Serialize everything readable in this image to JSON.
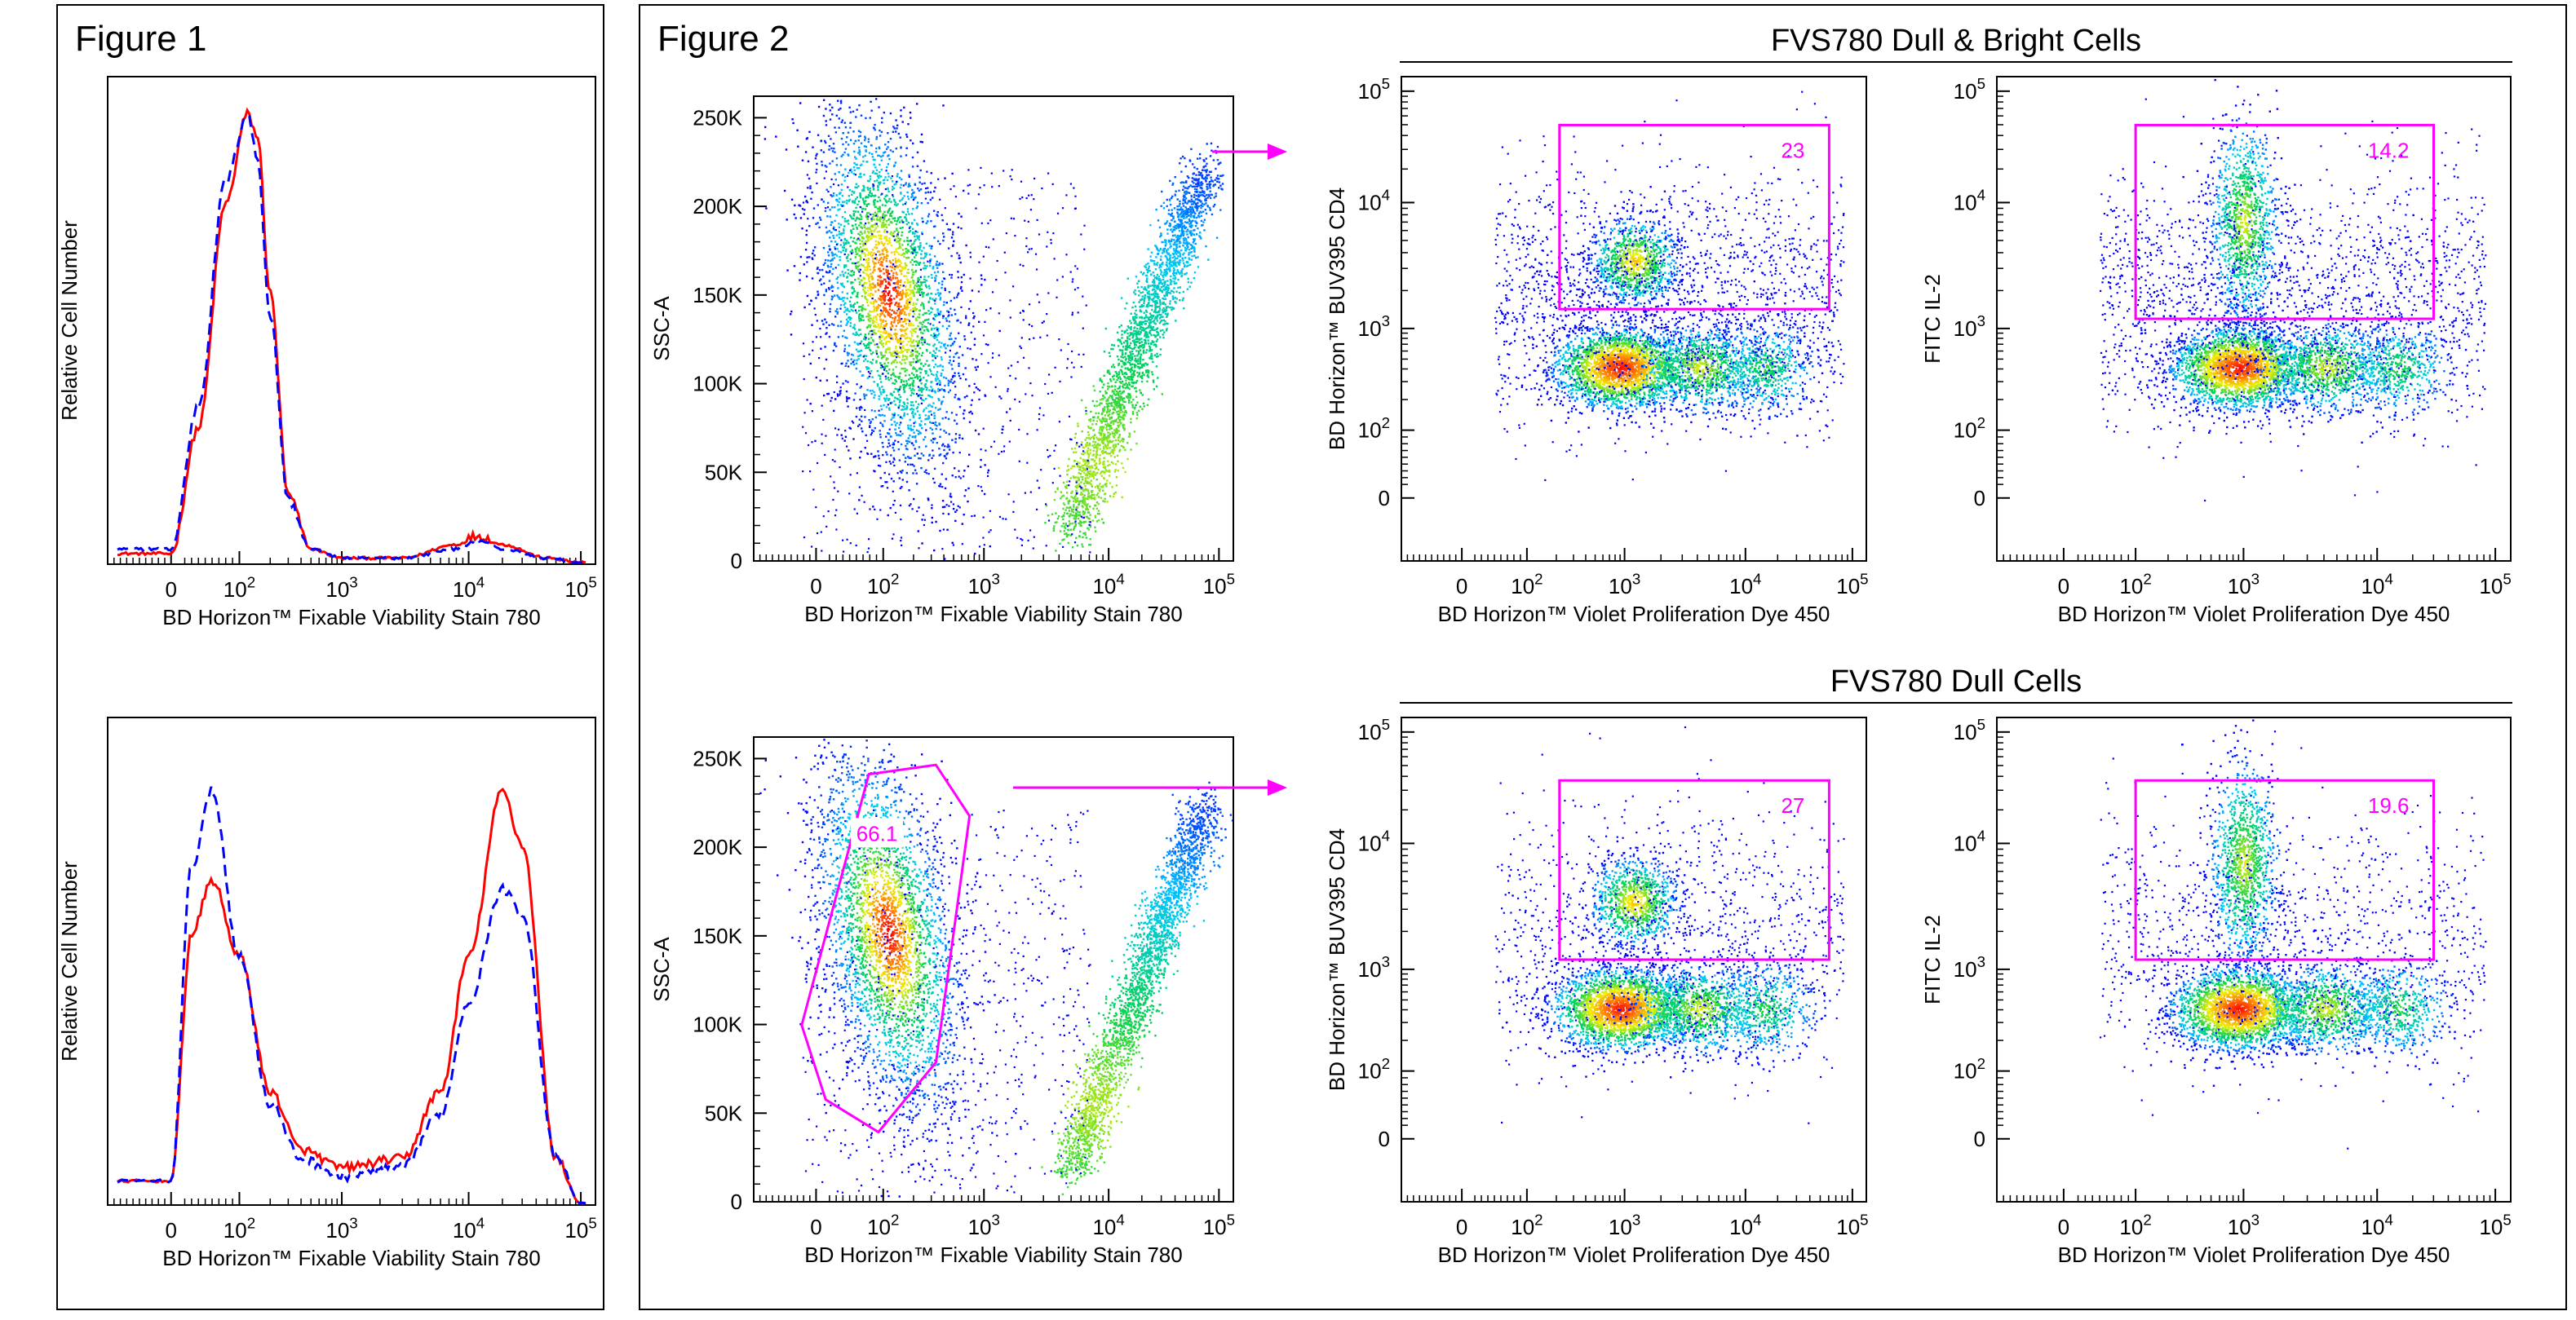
{
  "colors": {
    "gate": "#ff00ff",
    "solid_line": "#ff0000",
    "dashed_line": "#0000ff",
    "density_low": "#0000ff",
    "density_high": "#ff0000"
  },
  "figure1": {
    "title": "Figure 1",
    "panels": [
      {
        "ylabel": "Relative Cell Number",
        "xlabel": "BD Horizon™ Fixable Viability Stain 780",
        "x_ticks": [
          "0",
          "10^2",
          "10^3",
          "10^4",
          "10^5"
        ]
      },
      {
        "ylabel": "Relative Cell Number",
        "xlabel": "BD Horizon™ Fixable Viability Stain 780",
        "x_ticks": [
          "0",
          "10^2",
          "10^3",
          "10^4",
          "10^5"
        ]
      }
    ]
  },
  "figure2": {
    "title": "Figure 2",
    "section_titles": [
      "FVS780 Dull & Bright Cells",
      "FVS780 Dull Cells"
    ],
    "scatter_panels": [
      {
        "ylabel": "SSC-A",
        "xlabel": "BD Horizon™ Fixable Viability Stain 780",
        "y_ticks": [
          "0",
          "50K",
          "100K",
          "150K",
          "200K",
          "250K"
        ],
        "x_ticks": [
          "0",
          "10^2",
          "10^3",
          "10^4",
          "10^5"
        ]
      },
      {
        "ylabel": "SSC-A",
        "xlabel": "BD Horizon™ Fixable Viability Stain 780",
        "y_ticks": [
          "0",
          "50K",
          "100K",
          "150K",
          "200K",
          "250K"
        ],
        "x_ticks": [
          "0",
          "10^2",
          "10^3",
          "10^4",
          "10^5"
        ],
        "gate_value": "66.1"
      }
    ],
    "dot_panels": [
      {
        "ylabel": "BD Horizon™ BUV395 CD4",
        "xlabel": "BD Horizon™ Violet Proliferation Dye 450",
        "gate_value": "23"
      },
      {
        "ylabel": "FITC IL-2",
        "xlabel": "BD Horizon™ Violet Proliferation Dye 450",
        "gate_value": "14.2"
      },
      {
        "ylabel": "BD Horizon™ BUV395 CD4",
        "xlabel": "BD Horizon™ Violet Proliferation Dye 450",
        "gate_value": "27"
      },
      {
        "ylabel": "FITC IL-2",
        "xlabel": "BD Horizon™ Violet Proliferation Dye 450",
        "gate_value": "19.6"
      }
    ],
    "dot_y_ticks": [
      "0",
      "10^2",
      "10^3",
      "10^4",
      "10^5"
    ],
    "dot_x_ticks": [
      "0",
      "10^2",
      "10^3",
      "10^4",
      "10^5"
    ]
  },
  "chart_data": [
    {
      "type": "line",
      "panel": "figure1-top",
      "xlabel": "BD Horizon™ Fixable Viability Stain 780",
      "ylabel": "Relative Cell Number",
      "x": [
        0,
        40,
        80,
        120,
        150,
        200,
        300,
        500,
        1000,
        3000,
        8000,
        12000,
        20000,
        50000,
        100000
      ],
      "series": [
        {
          "values": [
            0.02,
            0.3,
            0.8,
            1.0,
            0.95,
            0.6,
            0.15,
            0.03,
            0.01,
            0.01,
            0.04,
            0.06,
            0.04,
            0.01,
            0.0
          ]
        },
        {
          "values": [
            0.03,
            0.35,
            0.85,
            1.0,
            0.9,
            0.55,
            0.14,
            0.03,
            0.01,
            0.01,
            0.03,
            0.05,
            0.03,
            0.01,
            0.0
          ]
        }
      ]
    },
    {
      "type": "line",
      "panel": "figure1-bottom",
      "xlabel": "BD Horizon™ Fixable Viability Stain 780",
      "ylabel": "Relative Cell Number",
      "x": [
        0,
        30,
        60,
        100,
        200,
        400,
        1000,
        3000,
        6000,
        10000,
        20000,
        30000,
        60000,
        100000
      ],
      "series": [
        {
          "values": [
            0.05,
            0.6,
            0.72,
            0.55,
            0.25,
            0.12,
            0.08,
            0.1,
            0.25,
            0.55,
            0.92,
            0.8,
            0.1,
            0.0
          ]
        },
        {
          "values": [
            0.05,
            0.75,
            0.92,
            0.55,
            0.22,
            0.1,
            0.06,
            0.08,
            0.2,
            0.45,
            0.7,
            0.65,
            0.1,
            0.0
          ]
        }
      ]
    },
    {
      "type": "scatter",
      "panel": "fig2-scatter-top",
      "xlabel": "BD Horizon™ Fixable Viability Stain 780",
      "ylabel": "SSC-A",
      "ylim": [
        0,
        262144
      ]
    },
    {
      "type": "scatter",
      "panel": "fig2-scatter-bottom",
      "xlabel": "BD Horizon™ Fixable Viability Stain 780",
      "ylabel": "SSC-A",
      "ylim": [
        0,
        262144
      ],
      "gate_percent": 66.1
    },
    {
      "type": "scatter",
      "panel": "fig2-cd4-top",
      "xlabel": "BD Horizon™ Violet Proliferation Dye 450",
      "ylabel": "BD Horizon™ BUV395 CD4",
      "gate_percent": 23
    },
    {
      "type": "scatter",
      "panel": "fig2-il2-top",
      "xlabel": "BD Horizon™ Violet Proliferation Dye 450",
      "ylabel": "FITC IL-2",
      "gate_percent": 14.2
    },
    {
      "type": "scatter",
      "panel": "fig2-cd4-bottom",
      "xlabel": "BD Horizon™ Violet Proliferation Dye 450",
      "ylabel": "BD Horizon™ BUV395 CD4",
      "gate_percent": 27
    },
    {
      "type": "scatter",
      "panel": "fig2-il2-bottom",
      "xlabel": "BD Horizon™ Violet Proliferation Dye 450",
      "ylabel": "FITC IL-2",
      "gate_percent": 19.6
    }
  ]
}
